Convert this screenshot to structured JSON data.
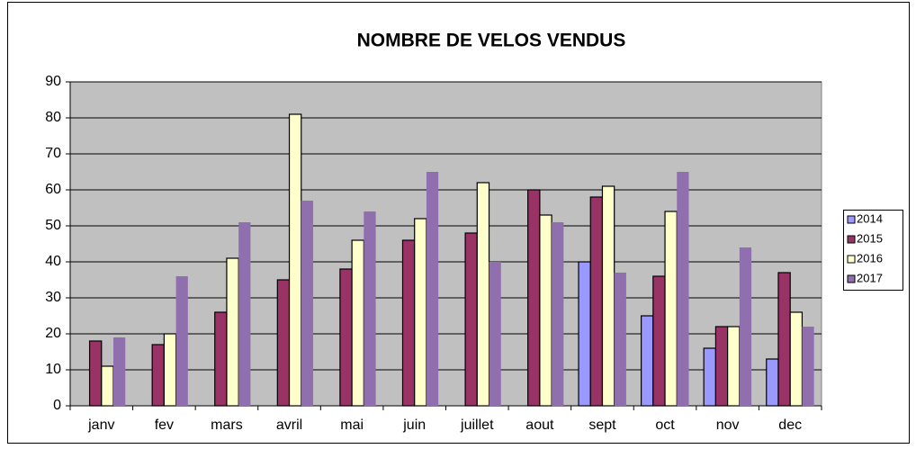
{
  "chart_data": {
    "type": "bar",
    "title": "NOMBRE DE VELOS VENDUS",
    "categories": [
      "janv",
      "fev",
      "mars",
      "avril",
      "mai",
      "juin",
      "juillet",
      "aout",
      "sept",
      "oct",
      "nov",
      "dec"
    ],
    "series": [
      {
        "name": "2014",
        "color": "#9999ff",
        "values": [
          null,
          null,
          null,
          null,
          null,
          null,
          null,
          null,
          40,
          25,
          16,
          13
        ]
      },
      {
        "name": "2015",
        "color": "#993366",
        "values": [
          18,
          17,
          26,
          35,
          38,
          46,
          48,
          60,
          58,
          36,
          22,
          37
        ]
      },
      {
        "name": "2016",
        "color": "#ffffcc",
        "values": [
          11,
          20,
          41,
          81,
          46,
          52,
          62,
          53,
          61,
          54,
          22,
          26
        ]
      },
      {
        "name": "2017",
        "color": "#8f6fae",
        "values": [
          19,
          36,
          51,
          57,
          54,
          65,
          40,
          51,
          37,
          65,
          44,
          22
        ]
      }
    ],
    "ylim": [
      0,
      90
    ],
    "yticks": [
      0,
      10,
      20,
      30,
      40,
      50,
      60,
      70,
      80,
      90
    ],
    "grid": true,
    "legend": "right"
  }
}
